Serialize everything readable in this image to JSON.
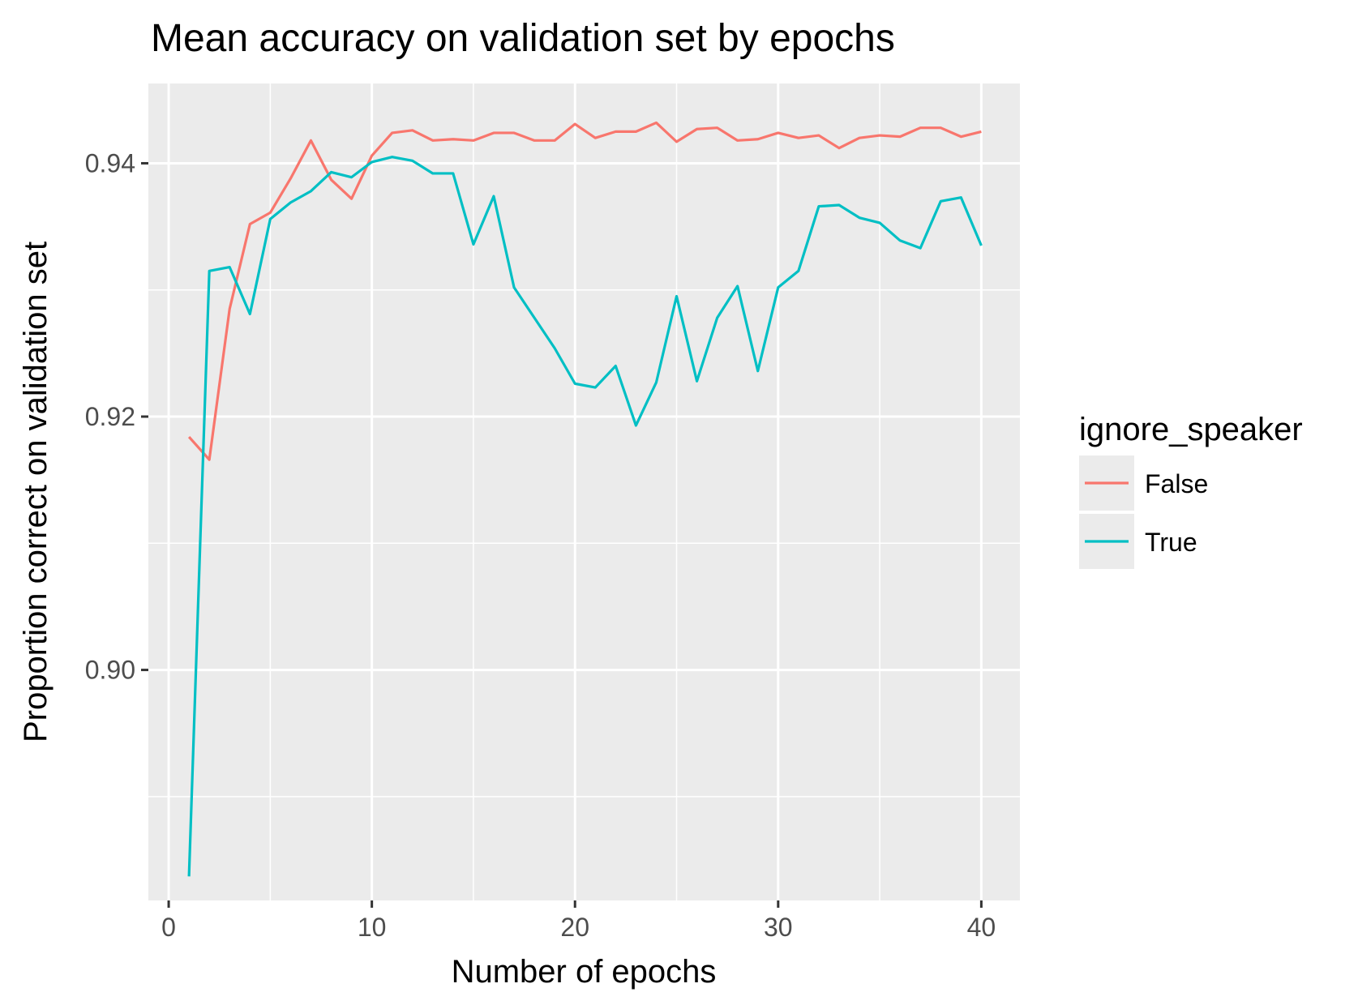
{
  "chart_data": {
    "type": "line",
    "title": "Mean accuracy on validation set by epochs",
    "xlabel": "Number of epochs",
    "ylabel": "Proportion correct on validation set",
    "xlim": [
      -1,
      41.9
    ],
    "ylim": [
      0.8818,
      0.9463
    ],
    "x_ticks": [
      0,
      10,
      20,
      30,
      40
    ],
    "x_tick_labels": [
      "0",
      "10",
      "20",
      "30",
      "40"
    ],
    "x_minor_ticks": [
      5,
      15,
      25,
      35
    ],
    "y_ticks": [
      0.9,
      0.92,
      0.94
    ],
    "y_tick_labels": [
      "0.90",
      "0.92",
      "0.94"
    ],
    "y_minor_ticks": [
      0.89,
      0.91,
      0.93
    ],
    "grid": true,
    "legend": {
      "title": "ignore_speaker",
      "position": "right"
    },
    "x": [
      1,
      2,
      3,
      4,
      5,
      6,
      7,
      8,
      9,
      10,
      11,
      12,
      13,
      14,
      15,
      16,
      17,
      18,
      19,
      20,
      21,
      22,
      23,
      24,
      25,
      26,
      27,
      28,
      29,
      30,
      31,
      32,
      33,
      34,
      35,
      36,
      37,
      38,
      39,
      40
    ],
    "series": [
      {
        "name": "False",
        "color": "#F8766D",
        "values": [
          0.9184,
          0.9166,
          0.9285,
          0.9352,
          0.9361,
          0.9388,
          0.9418,
          0.9387,
          0.9372,
          0.9406,
          0.9424,
          0.9426,
          0.9418,
          0.9419,
          0.9418,
          0.9424,
          0.9424,
          0.9418,
          0.9418,
          0.9431,
          0.942,
          0.9425,
          0.9425,
          0.9432,
          0.9417,
          0.9427,
          0.9428,
          0.9418,
          0.9419,
          0.9424,
          0.942,
          0.9422,
          0.9412,
          0.942,
          0.9422,
          0.9421,
          0.9428,
          0.9428,
          0.9421,
          0.9425
        ]
      },
      {
        "name": "True",
        "color": "#00BFC4",
        "values": [
          0.8837,
          0.9315,
          0.9318,
          0.9281,
          0.9356,
          0.9369,
          0.9378,
          0.9393,
          0.9389,
          0.9401,
          0.9405,
          0.9402,
          0.9392,
          0.9392,
          0.9336,
          0.9374,
          0.9302,
          0.9278,
          0.9254,
          0.9226,
          0.9223,
          0.924,
          0.9193,
          0.9227,
          0.9295,
          0.9228,
          0.9278,
          0.9303,
          0.9236,
          0.9302,
          0.9315,
          0.9366,
          0.9367,
          0.9357,
          0.9353,
          0.9339,
          0.9333,
          0.937,
          0.9373,
          0.9335
        ]
      }
    ]
  }
}
